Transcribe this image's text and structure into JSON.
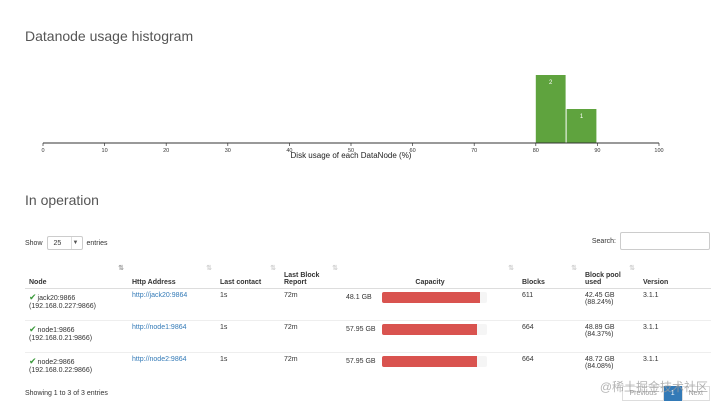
{
  "histogram": {
    "title": "Datanode usage histogram",
    "xlabel": "Disk usage of each DataNode (%)",
    "ticks": [
      "0",
      "10",
      "20",
      "30",
      "40",
      "50",
      "60",
      "70",
      "80",
      "90",
      "100"
    ],
    "bar_color": "#5fa33e",
    "chart_data": {
      "type": "bar",
      "title": "Datanode usage histogram",
      "xlabel": "Disk usage of each DataNode (%)",
      "x_range": [
        0,
        100
      ],
      "bins": [
        {
          "from": 80,
          "to": 85,
          "count": 2
        },
        {
          "from": 85,
          "to": 90,
          "count": 1
        }
      ]
    }
  },
  "operation": {
    "title": "In operation",
    "show_label": "Show",
    "entries_value": "25",
    "entries_label": "entries",
    "search_label": "Search:"
  },
  "table": {
    "headers": {
      "node": "Node",
      "http": "Http Address",
      "last_contact": "Last contact",
      "last_block_report": "Last Block Report",
      "capacity": "Capacity",
      "blocks": "Blocks",
      "pool_used": "Block pool used",
      "version": "Version"
    },
    "rows": [
      {
        "node": "jack20:9866",
        "ip": "(192.168.0.227:9866)",
        "http": "http://jack20:9864",
        "last_contact": "1s",
        "report": "72m",
        "capacity": "48.1 GB",
        "used_pct": 0.93,
        "blocks": "611",
        "pool": "42.45 GB",
        "pool_pct": "(88.24%)",
        "version": "3.1.1"
      },
      {
        "node": "node1:9866",
        "ip": "(192.168.0.21:9866)",
        "http": "http://node1:9864",
        "last_contact": "1s",
        "report": "72m",
        "capacity": "57.95 GB",
        "used_pct": 0.9,
        "blocks": "664",
        "pool": "48.89 GB",
        "pool_pct": "(84.37%)",
        "version": "3.1.1"
      },
      {
        "node": "node2:9866",
        "ip": "(192.168.0.22:9866)",
        "http": "http://node2:9864",
        "last_contact": "1s",
        "report": "72m",
        "capacity": "57.95 GB",
        "used_pct": 0.9,
        "blocks": "664",
        "pool": "48.72 GB",
        "pool_pct": "(84.08%)",
        "version": "3.1.1"
      }
    ]
  },
  "footer": {
    "showing": "Showing 1 to 3 of 3 entries",
    "prev": "Previous",
    "page": "1",
    "next": "Next"
  },
  "watermark": "@稀土掘金技术社区"
}
